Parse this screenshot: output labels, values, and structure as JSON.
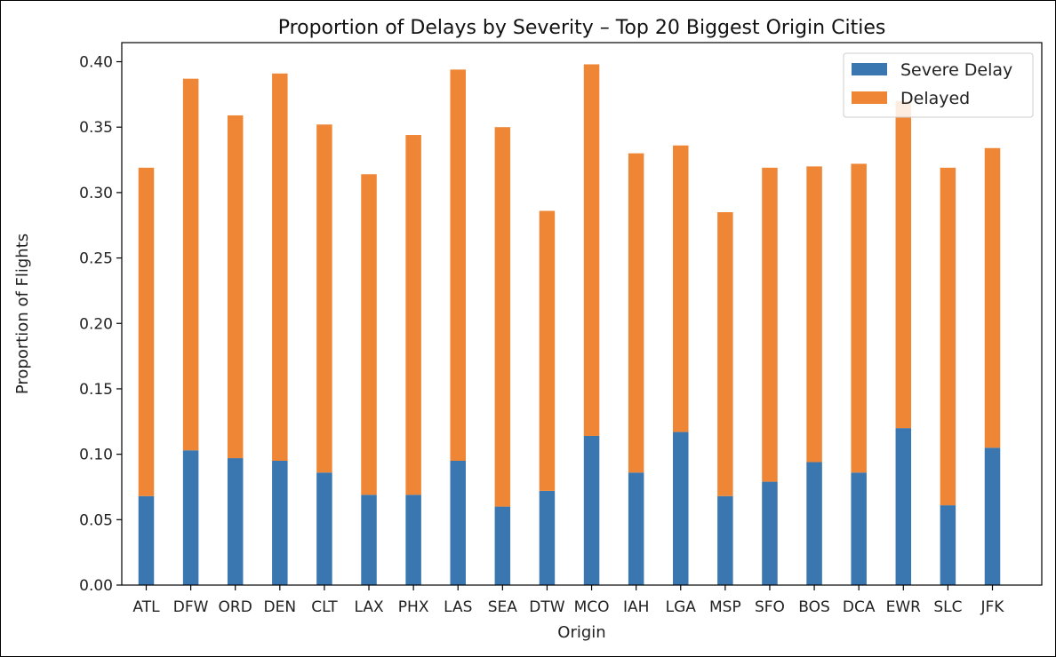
{
  "chart_data": {
    "type": "bar",
    "stacked": true,
    "title": "Proportion of Delays by Severity – Top 20 Biggest Origin Cities",
    "xlabel": "Origin",
    "ylabel": "Proportion of Flights",
    "ylim": [
      0,
      0.4146
    ],
    "yticks": [
      "0.00",
      "0.05",
      "0.10",
      "0.15",
      "0.20",
      "0.25",
      "0.30",
      "0.35",
      "0.40"
    ],
    "grid": false,
    "legend_position": "top-right",
    "categories": [
      "ATL",
      "DFW",
      "ORD",
      "DEN",
      "CLT",
      "LAX",
      "PHX",
      "LAS",
      "SEA",
      "DTW",
      "MCO",
      "IAH",
      "LGA",
      "MSP",
      "SFO",
      "BOS",
      "DCA",
      "EWR",
      "SLC",
      "JFK"
    ],
    "series": [
      {
        "name": "Severe Delay",
        "color": "#3a76af",
        "values": [
          0.068,
          0.103,
          0.097,
          0.095,
          0.086,
          0.069,
          0.069,
          0.095,
          0.06,
          0.072,
          0.114,
          0.086,
          0.117,
          0.068,
          0.079,
          0.094,
          0.086,
          0.12,
          0.061,
          0.105
        ]
      },
      {
        "name": "Delayed",
        "color": "#ef8636",
        "values": [
          0.251,
          0.284,
          0.262,
          0.296,
          0.266,
          0.245,
          0.275,
          0.299,
          0.29,
          0.214,
          0.284,
          0.244,
          0.219,
          0.217,
          0.24,
          0.226,
          0.236,
          0.25,
          0.258,
          0.229
        ]
      }
    ]
  }
}
